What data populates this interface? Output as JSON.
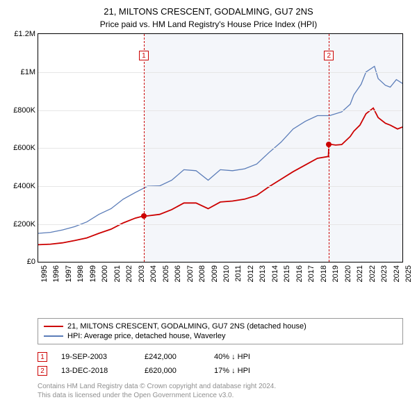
{
  "title": "21, MILTONS CRESCENT, GODALMING, GU7 2NS",
  "subtitle": "Price paid vs. HM Land Registry's House Price Index (HPI)",
  "chart": {
    "type": "line",
    "background_color": "#ffffff",
    "shaded_background_color": "#f4f6fa",
    "grid_color": "#e6e6e6",
    "axis_color": "#000000",
    "x_years": [
      1995,
      1996,
      1997,
      1998,
      1999,
      2000,
      2001,
      2002,
      2003,
      2004,
      2005,
      2006,
      2007,
      2008,
      2009,
      2010,
      2011,
      2012,
      2013,
      2014,
      2015,
      2016,
      2017,
      2018,
      2019,
      2020,
      2021,
      2022,
      2023,
      2024,
      2025
    ],
    "y_min": 0,
    "y_max": 1200000,
    "y_step": 200000,
    "y_labels": [
      "£0",
      "£200K",
      "£400K",
      "£600K",
      "£800K",
      "£1M",
      "£1.2M"
    ],
    "shaded_from_year": 2003.75,
    "shaded_to_year": 2025,
    "series": [
      {
        "name": "property",
        "color": "#cc0000",
        "width": 1.8,
        "label": "21, MILTONS CRESCENT, GODALMING, GU7 2NS (detached house)",
        "points": [
          [
            1995,
            90000
          ],
          [
            1996,
            93000
          ],
          [
            1997,
            100000
          ],
          [
            1998,
            112000
          ],
          [
            1999,
            126000
          ],
          [
            2000,
            150000
          ],
          [
            2001,
            172000
          ],
          [
            2002,
            205000
          ],
          [
            2003,
            230000
          ],
          [
            2003.7,
            242000
          ],
          [
            2004,
            242000
          ],
          [
            2005,
            250000
          ],
          [
            2006,
            275000
          ],
          [
            2007,
            310000
          ],
          [
            2008,
            310000
          ],
          [
            2009,
            280000
          ],
          [
            2010,
            315000
          ],
          [
            2011,
            320000
          ],
          [
            2012,
            330000
          ],
          [
            2013,
            350000
          ],
          [
            2014,
            395000
          ],
          [
            2015,
            435000
          ],
          [
            2016,
            475000
          ],
          [
            2017,
            510000
          ],
          [
            2018,
            545000
          ],
          [
            2018.9,
            555000
          ],
          [
            2018.95,
            620000
          ],
          [
            2019.5,
            615000
          ],
          [
            2020,
            618000
          ],
          [
            2020.7,
            660000
          ],
          [
            2021,
            688000
          ],
          [
            2021.5,
            720000
          ],
          [
            2022,
            780000
          ],
          [
            2022.6,
            810000
          ],
          [
            2023,
            760000
          ],
          [
            2023.6,
            730000
          ],
          [
            2024,
            720000
          ],
          [
            2024.6,
            700000
          ],
          [
            2025,
            710000
          ]
        ]
      },
      {
        "name": "hpi",
        "color": "#5a7cb8",
        "width": 1.3,
        "label": "HPI: Average price, detached house, Waverley",
        "points": [
          [
            1995,
            150000
          ],
          [
            1996,
            155000
          ],
          [
            1997,
            168000
          ],
          [
            1998,
            185000
          ],
          [
            1999,
            210000
          ],
          [
            2000,
            250000
          ],
          [
            2001,
            280000
          ],
          [
            2002,
            330000
          ],
          [
            2003,
            365000
          ],
          [
            2004,
            398000
          ],
          [
            2005,
            400000
          ],
          [
            2006,
            430000
          ],
          [
            2007,
            485000
          ],
          [
            2008,
            480000
          ],
          [
            2009,
            430000
          ],
          [
            2010,
            485000
          ],
          [
            2011,
            480000
          ],
          [
            2012,
            490000
          ],
          [
            2013,
            515000
          ],
          [
            2014,
            575000
          ],
          [
            2015,
            630000
          ],
          [
            2016,
            700000
          ],
          [
            2017,
            740000
          ],
          [
            2018,
            770000
          ],
          [
            2019,
            770000
          ],
          [
            2020,
            790000
          ],
          [
            2020.7,
            830000
          ],
          [
            2021,
            880000
          ],
          [
            2021.6,
            935000
          ],
          [
            2022,
            1000000
          ],
          [
            2022.7,
            1030000
          ],
          [
            2023,
            965000
          ],
          [
            2023.6,
            930000
          ],
          [
            2024,
            920000
          ],
          [
            2024.5,
            960000
          ],
          [
            2025,
            940000
          ]
        ]
      }
    ],
    "markers": [
      {
        "n": "1",
        "year": 2003.7,
        "value": 242000
      },
      {
        "n": "2",
        "year": 2018.95,
        "value": 620000
      }
    ]
  },
  "sales": [
    {
      "n": "1",
      "date": "19-SEP-2003",
      "price": "£242,000",
      "hpi_diff": "40% ↓ HPI"
    },
    {
      "n": "2",
      "date": "13-DEC-2018",
      "price": "£620,000",
      "hpi_diff": "17% ↓ HPI"
    }
  ],
  "footer_line1": "Contains HM Land Registry data © Crown copyright and database right 2024.",
  "footer_line2": "This data is licensed under the Open Government Licence v3.0."
}
